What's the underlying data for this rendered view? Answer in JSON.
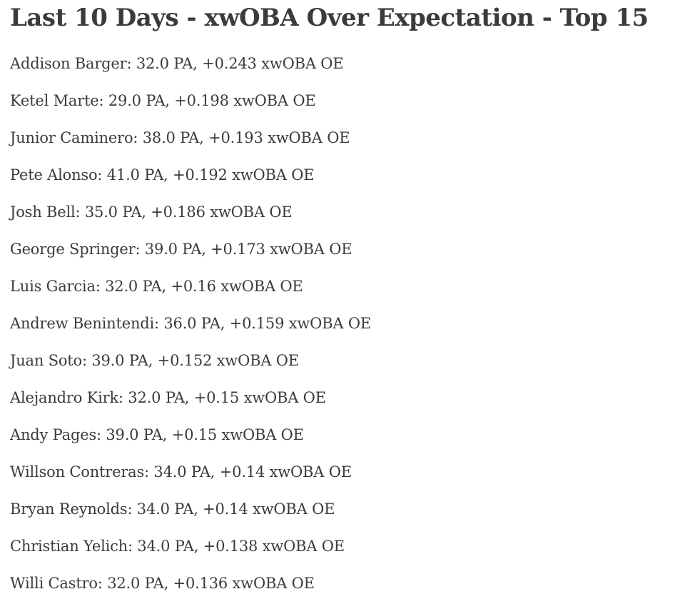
{
  "page": {
    "title": "Last 10 Days - xwOBA Over Expectation - Top 15"
  },
  "colors": {
    "background": "#ffffff",
    "text": "#3b3b3b"
  },
  "stats_meta": {
    "metric": "xwOBA OE",
    "sample_unit": "PA"
  },
  "players": [
    {
      "rank": 1,
      "name": "Addison Barger",
      "pa": "32.0",
      "xwoba_oe": "+0.243",
      "display": "Addison Barger: 32.0 PA, +0.243 xwOBA OE"
    },
    {
      "rank": 2,
      "name": "Ketel Marte",
      "pa": "29.0",
      "xwoba_oe": "+0.198",
      "display": "Ketel Marte: 29.0 PA, +0.198 xwOBA OE"
    },
    {
      "rank": 3,
      "name": "Junior Caminero",
      "pa": "38.0",
      "xwoba_oe": "+0.193",
      "display": "Junior Caminero: 38.0 PA, +0.193 xwOBA OE"
    },
    {
      "rank": 4,
      "name": "Pete Alonso",
      "pa": "41.0",
      "xwoba_oe": "+0.192",
      "display": "Pete Alonso: 41.0 PA, +0.192 xwOBA OE"
    },
    {
      "rank": 5,
      "name": "Josh Bell",
      "pa": "35.0",
      "xwoba_oe": "+0.186",
      "display": "Josh Bell: 35.0 PA, +0.186 xwOBA OE"
    },
    {
      "rank": 6,
      "name": "George Springer",
      "pa": "39.0",
      "xwoba_oe": "+0.173",
      "display": "George Springer: 39.0 PA, +0.173 xwOBA OE"
    },
    {
      "rank": 7,
      "name": "Luis Garcia",
      "pa": "32.0",
      "xwoba_oe": "+0.16",
      "display": "Luis Garcia: 32.0 PA, +0.16 xwOBA OE"
    },
    {
      "rank": 8,
      "name": "Andrew Benintendi",
      "pa": "36.0",
      "xwoba_oe": "+0.159",
      "display": "Andrew Benintendi: 36.0 PA, +0.159 xwOBA OE"
    },
    {
      "rank": 9,
      "name": "Juan Soto",
      "pa": "39.0",
      "xwoba_oe": "+0.152",
      "display": "Juan Soto: 39.0 PA, +0.152 xwOBA OE"
    },
    {
      "rank": 10,
      "name": "Alejandro Kirk",
      "pa": "32.0",
      "xwoba_oe": "+0.15",
      "display": "Alejandro Kirk: 32.0 PA, +0.15 xwOBA OE"
    },
    {
      "rank": 11,
      "name": "Andy Pages",
      "pa": "39.0",
      "xwoba_oe": "+0.15",
      "display": "Andy Pages: 39.0 PA, +0.15 xwOBA OE"
    },
    {
      "rank": 12,
      "name": "Willson Contreras",
      "pa": "34.0",
      "xwoba_oe": "+0.14",
      "display": "Willson Contreras: 34.0 PA, +0.14 xwOBA OE"
    },
    {
      "rank": 13,
      "name": "Bryan Reynolds",
      "pa": "34.0",
      "xwoba_oe": "+0.14",
      "display": "Bryan Reynolds: 34.0 PA, +0.14 xwOBA OE"
    },
    {
      "rank": 14,
      "name": "Christian Yelich",
      "pa": "34.0",
      "xwoba_oe": "+0.138",
      "display": "Christian Yelich: 34.0 PA, +0.138 xwOBA OE"
    },
    {
      "rank": 15,
      "name": "Willi Castro",
      "pa": "32.0",
      "xwoba_oe": "+0.136",
      "display": "Willi Castro: 32.0 PA, +0.136 xwOBA OE"
    }
  ]
}
